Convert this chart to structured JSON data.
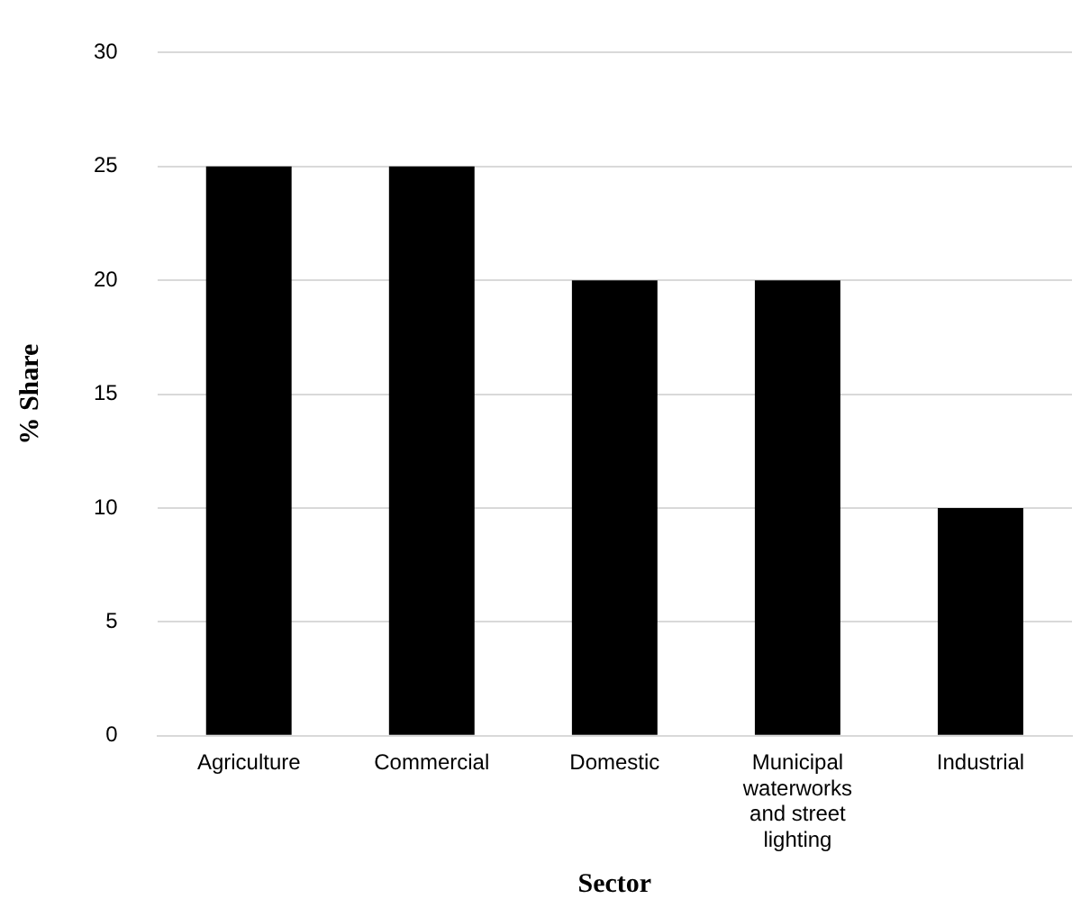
{
  "chart_data": {
    "type": "bar",
    "xlabel": "Sector",
    "ylabel": "% Share",
    "categories": [
      "Agriculture",
      "Commercial",
      "Domestic",
      "Municipal waterworks and street lighting",
      "Industrial"
    ],
    "values": [
      25,
      25,
      20,
      20,
      10
    ],
    "color": "#000000",
    "ylim": [
      0,
      30
    ],
    "yticks": [
      0,
      5,
      10,
      15,
      20,
      25,
      30
    ],
    "grid": "y",
    "legend": false
  }
}
